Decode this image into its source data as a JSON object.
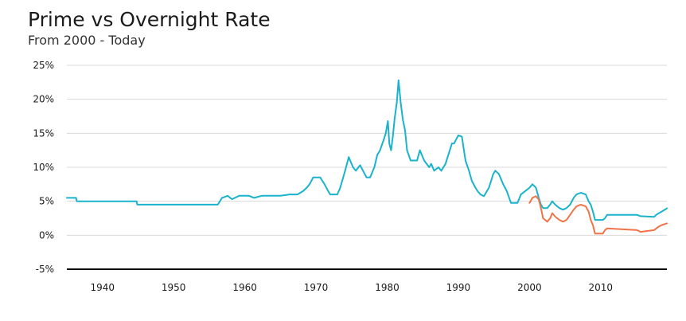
{
  "chart_data": {
    "type": "line",
    "title": "Prime vs Overnight Rate",
    "subtitle": "From 2000 - Today",
    "xlim": [
      1935,
      2019.3
    ],
    "ylim": [
      -5,
      25
    ],
    "y_ticks": [
      -5,
      0,
      5,
      10,
      15,
      20,
      25
    ],
    "y_tick_labels": [
      "-5%",
      "0%",
      "5%",
      "10%",
      "15%",
      "20%",
      "25%"
    ],
    "x_ticks": [
      1940,
      1950,
      1960,
      1970,
      1980,
      1990,
      2000,
      2010
    ],
    "x_tick_labels": [
      "1940",
      "1950",
      "1960",
      "1970",
      "1980",
      "1990",
      "2000",
      "2010"
    ],
    "grid": true,
    "legend": "none",
    "colors": {
      "prime": "#1ab3cc",
      "overnight": "#f07447",
      "grid": "#d9d9d9",
      "baseline": "#000000"
    },
    "series": [
      {
        "color": "#1ab3cc",
        "x": [
          1935,
          1936.3,
          1936.4,
          1944.8,
          1944.9,
          1956.2,
          1956.8,
          1957.6,
          1958.2,
          1959.2,
          1960.6,
          1961.3,
          1962.4,
          1965,
          1966.3,
          1967.4,
          1968.2,
          1968.7,
          1969.1,
          1969.6,
          1970.6,
          1971.2,
          1971.7,
          1972,
          1973,
          1973.4,
          1974.1,
          1974.6,
          1975.2,
          1975.6,
          1976.2,
          1976.6,
          1977.1,
          1977.6,
          1978.2,
          1978.6,
          1979,
          1979.5,
          1979.8,
          1980.1,
          1980.3,
          1980.55,
          1980.8,
          1981.05,
          1981.35,
          1981.6,
          1981.9,
          1982.2,
          1982.5,
          1982.8,
          1983.3,
          1984.2,
          1984.6,
          1985.2,
          1985.9,
          1986.2,
          1986.6,
          1987.2,
          1987.6,
          1988.2,
          1989.1,
          1989.4,
          1990,
          1990.5,
          1991,
          1991.5,
          1991.9,
          1992.4,
          1992.7,
          1993.1,
          1993.6,
          1994.3,
          1994.9,
          1995.2,
          1995.7,
          1996.3,
          1996.8,
          1997.4,
          1998.3,
          1998.8,
          1999.4,
          2000,
          2000.4,
          2000.9,
          2001.3,
          2001.6,
          2001.9,
          2002.5,
          2002.9,
          2003.2,
          2003.6,
          2004.2,
          2004.7,
          2005.2,
          2005.7,
          2006.2,
          2006.6,
          2007.2,
          2007.9,
          2008.3,
          2008.6,
          2008.9,
          2009.2,
          2010.3,
          2010.6,
          2010.9,
          2015.1,
          2015.6,
          2017.5,
          2017.8,
          2018.1,
          2018.6,
          2019.3
        ],
        "y": [
          5.5,
          5.5,
          5,
          5,
          4.5,
          4.5,
          5.5,
          5.8,
          5.3,
          5.8,
          5.8,
          5.5,
          5.8,
          5.8,
          6,
          6,
          6.5,
          7,
          7.5,
          8.5,
          8.5,
          7.5,
          6.5,
          6,
          6,
          7,
          9.5,
          11.5,
          10,
          9.5,
          10.3,
          9.5,
          8.5,
          8.5,
          10,
          11.8,
          12.5,
          14,
          15,
          16.8,
          13.5,
          12.5,
          14.5,
          17.2,
          19.5,
          22.8,
          19.5,
          17,
          15.5,
          12.5,
          11,
          11,
          12.5,
          11,
          10,
          10.5,
          9.5,
          10,
          9.5,
          10.5,
          13.5,
          13.5,
          14.7,
          14.5,
          11,
          9.5,
          8,
          7,
          6.5,
          6,
          5.75,
          7,
          9,
          9.5,
          9,
          7.5,
          6.5,
          4.75,
          4.75,
          6,
          6.5,
          7,
          7.5,
          7,
          5.5,
          4.5,
          4,
          4,
          4.5,
          5,
          4.5,
          4,
          3.75,
          4,
          4.5,
          5.5,
          6,
          6.25,
          6,
          5,
          4.5,
          3.5,
          2.25,
          2.25,
          2.5,
          3,
          3,
          2.8,
          2.7,
          3,
          3.2,
          3.5,
          3.95
        ]
      },
      {
        "color": "#f07447",
        "x": [
          2000,
          2000.4,
          2000.9,
          2001.3,
          2001.6,
          2001.9,
          2002.5,
          2002.9,
          2003.2,
          2003.6,
          2004.2,
          2004.7,
          2005.2,
          2005.7,
          2006.2,
          2006.6,
          2007.2,
          2007.9,
          2008.3,
          2008.6,
          2008.9,
          2009.2,
          2010.3,
          2010.6,
          2010.9,
          2015.1,
          2015.6,
          2017.5,
          2017.8,
          2018.1,
          2018.6,
          2019.3
        ],
        "y": [
          4.75,
          5.5,
          5.75,
          5.25,
          4,
          2.5,
          2,
          2.5,
          3.25,
          2.75,
          2.25,
          2,
          2.25,
          3,
          3.75,
          4.25,
          4.5,
          4.25,
          3.5,
          2.25,
          1.5,
          0.25,
          0.25,
          0.75,
          1,
          0.75,
          0.5,
          0.75,
          1,
          1.25,
          1.5,
          1.75
        ]
      }
    ]
  }
}
